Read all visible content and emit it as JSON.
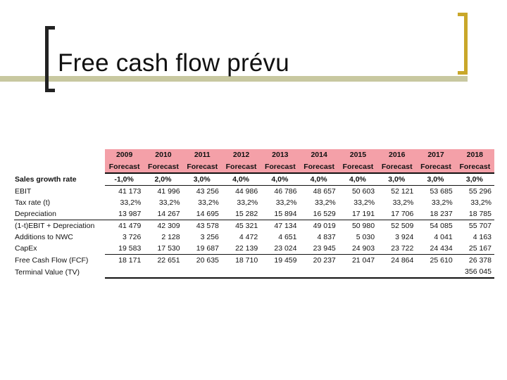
{
  "slide": {
    "title": "Free cash flow prévu"
  },
  "table": {
    "years": [
      "2009",
      "2010",
      "2011",
      "2012",
      "2013",
      "2014",
      "2015",
      "2016",
      "2017",
      "2018"
    ],
    "forecast_label": "Forecast",
    "rows": [
      {
        "label": "Sales growth rate",
        "values": [
          "-1,0%",
          "2,0%",
          "3,0%",
          "4,0%",
          "4,0%",
          "4,0%",
          "4,0%",
          "3,0%",
          "3,0%",
          "3,0%"
        ]
      },
      {
        "label": "EBIT",
        "values": [
          "41 173",
          "41 996",
          "43 256",
          "44 986",
          "46 786",
          "48 657",
          "50 603",
          "52 121",
          "53 685",
          "55 296"
        ]
      },
      {
        "label": "Tax rate (t)",
        "values": [
          "33,2%",
          "33,2%",
          "33,2%",
          "33,2%",
          "33,2%",
          "33,2%",
          "33,2%",
          "33,2%",
          "33,2%",
          "33,2%"
        ]
      },
      {
        "label": "Depreciation",
        "values": [
          "13 987",
          "14 267",
          "14 695",
          "15 282",
          "15 894",
          "16 529",
          "17 191",
          "17 706",
          "18 237",
          "18 785"
        ]
      },
      {
        "label": "(1-t)EBIT + Depreciation",
        "values": [
          "41 479",
          "42 309",
          "43 578",
          "45 321",
          "47 134",
          "49 019",
          "50 980",
          "52 509",
          "54 085",
          "55 707"
        ]
      },
      {
        "label": "Additions to NWC",
        "values": [
          "3 726",
          "2 128",
          "3 256",
          "4 472",
          "4 651",
          "4 837",
          "5 030",
          "3 924",
          "4 041",
          "4 163"
        ]
      },
      {
        "label": "CapEx",
        "values": [
          "19 583",
          "17 530",
          "19 687",
          "22 139",
          "23 024",
          "23 945",
          "24 903",
          "23 722",
          "24 434",
          "25 167"
        ]
      },
      {
        "label": "Free Cash Flow (FCF)",
        "values": [
          "18 171",
          "22 651",
          "20 635",
          "18 710",
          "19 459",
          "20 237",
          "21 047",
          "24 864",
          "25 610",
          "26 378"
        ]
      },
      {
        "label": "Terminal Value (TV)",
        "values": [
          "",
          "",
          "",
          "",
          "",
          "",
          "",
          "",
          "",
          "356 045"
        ]
      }
    ]
  }
}
